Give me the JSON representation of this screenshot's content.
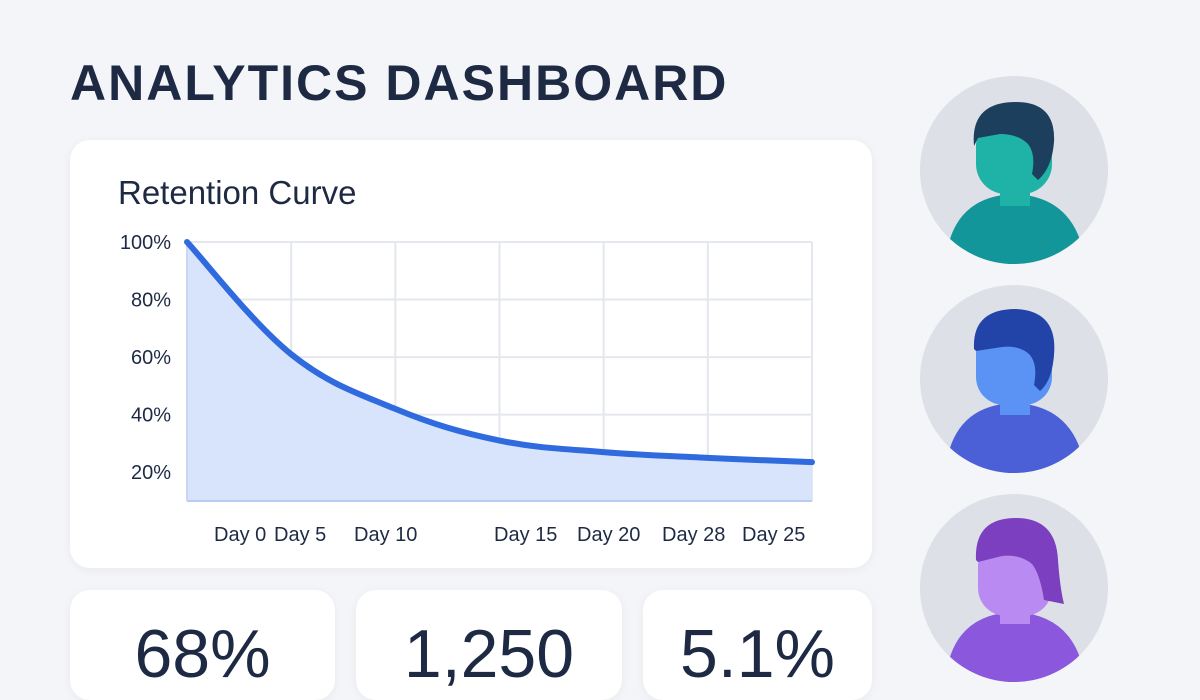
{
  "header": {
    "title": "ANALYTICS DASHBOARD"
  },
  "chart_data": {
    "type": "area",
    "title": "Retention Curve",
    "xlabel": "",
    "ylabel": "",
    "categories": [
      "Day 0",
      "Day 5",
      "Day 10",
      "Day 15",
      "Day 20",
      "Day 28",
      "Day 25"
    ],
    "yticks": [
      "100%",
      "80%",
      "60%",
      "40%",
      "20%"
    ],
    "ylim": [
      10,
      100
    ],
    "grid": true,
    "series": [
      {
        "values": [
          100,
          61,
          42,
          31,
          27,
          25,
          23.5
        ]
      }
    ],
    "colors": {
      "line": "#2f6bdf",
      "fill": "#d6e3fb",
      "grid": "#e4e7ed"
    }
  },
  "stats": [
    {
      "value": "68%"
    },
    {
      "value": "1,250"
    },
    {
      "value": "5.1%"
    }
  ],
  "avatars": [
    {
      "icon": "user-avatar-teal-icon",
      "skin": "#1fb3a8",
      "hair": "#1d3f5e",
      "shirt": "#12969a"
    },
    {
      "icon": "user-avatar-blue-icon",
      "skin": "#5b93f5",
      "hair": "#2243a8",
      "shirt": "#4b5fd6"
    },
    {
      "icon": "user-avatar-purple-icon",
      "skin": "#b98af2",
      "hair": "#7b3fbf",
      "shirt": "#8b57dd"
    }
  ]
}
